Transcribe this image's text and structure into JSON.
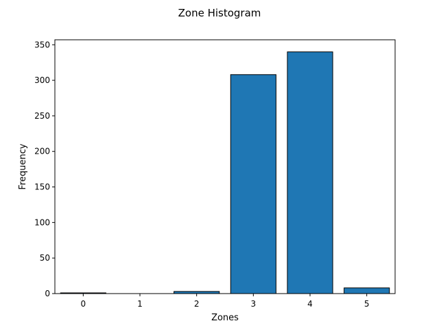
{
  "chart_data": {
    "type": "bar",
    "title": "Zone Histogram",
    "xlabel": "Zones",
    "ylabel": "Frequency",
    "categories": [
      "0",
      "1",
      "2",
      "3",
      "4",
      "5"
    ],
    "values": [
      1,
      0,
      3,
      308,
      340,
      8
    ],
    "xlim": [
      -0.5,
      5.5
    ],
    "ylim": [
      0,
      357
    ],
    "yticks": [
      0,
      50,
      100,
      150,
      200,
      250,
      300,
      350
    ],
    "grid": false,
    "legend": "none",
    "colors": {
      "bar_fill": "#1f77b4",
      "bar_edge": "#000000",
      "axes": "#000000",
      "background": "#ffffff"
    }
  }
}
